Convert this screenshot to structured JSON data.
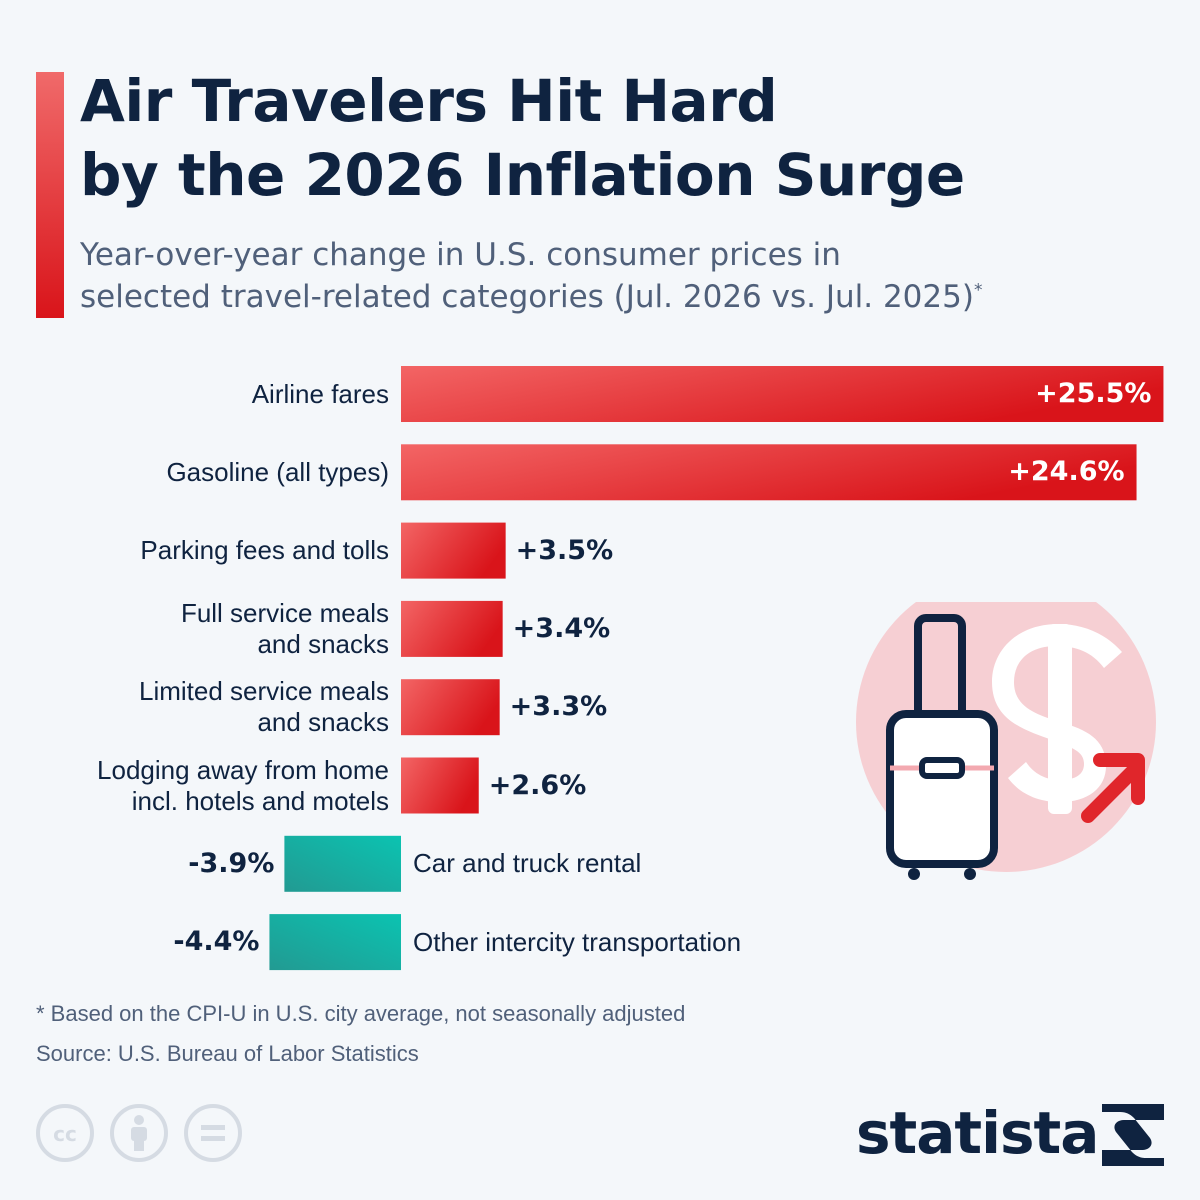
{
  "header": {
    "title_line1": "Air Travelers Hit Hard",
    "title_line2": "by the 2026 Inflation Surge",
    "subtitle_line1": "Year-over-year change in U.S. consumer prices in",
    "subtitle_line2": "selected travel-related categories (Jul. 2026 vs. Jul. 2025)",
    "subtitle_mark": "*",
    "accent_color": "#d9141a"
  },
  "chart_data": {
    "type": "bar",
    "orientation": "horizontal",
    "categories": [
      [
        "Airline fares"
      ],
      [
        "Gasoline (all types)"
      ],
      [
        "Parking fees and tolls"
      ],
      [
        "Full service meals",
        "and snacks"
      ],
      [
        "Limited service meals",
        "and snacks"
      ],
      [
        "Lodging away from home",
        "incl. hotels and motels"
      ],
      [
        "Car and truck rental"
      ],
      [
        "Other intercity transportation"
      ]
    ],
    "values": [
      25.5,
      24.6,
      3.5,
      3.4,
      3.3,
      2.6,
      -3.9,
      -4.4
    ],
    "value_labels": [
      "+25.5%",
      "+24.6%",
      "+3.5%",
      "+3.4%",
      "+3.3%",
      "+2.6%",
      "-3.9%",
      "-4.4%"
    ],
    "unit": "%",
    "positive_color": "#d9141a",
    "negative_color": "#1aaea0"
  },
  "illustration": {
    "icon": "suitcase-dollar-up-arrow-icon",
    "circle_color": "#f6cfd3",
    "arrow_color": "#e0262b"
  },
  "footer": {
    "footnote": "* Based on the CPI-U in U.S. city average, not seasonally adjusted",
    "source": "Source: U.S. Bureau of Labor Statistics",
    "license_icons": [
      "cc-icon",
      "attribution-icon",
      "no-derivatives-icon"
    ],
    "logo_text": "statista"
  }
}
